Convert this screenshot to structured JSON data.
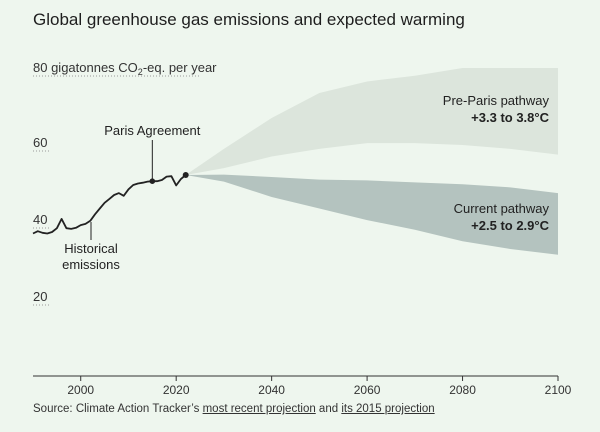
{
  "title": "Global greenhouse gas emissions and expected warming",
  "source": {
    "prefix": "Source: Climate Action Tracker’s ",
    "link1": "most recent projection",
    "middle": " and ",
    "link2": "its 2015 projection"
  },
  "colors": {
    "background": "#eef6ee",
    "pre_paris_band": "#dce5dc",
    "current_band": "#b4c3bf",
    "line": "#222222",
    "grid": "#9a9a9a"
  },
  "chart_data": {
    "type": "area",
    "title": "Global greenhouse gas emissions and expected warming",
    "ylabel": "80 gigatonnes CO2-eq. per year",
    "ylabel_parts": {
      "pre": "80 gigatonnes CO",
      "sub": "2",
      "post": "-eq. per year"
    },
    "xlim": [
      1990,
      2100
    ],
    "ylim": [
      0,
      80
    ],
    "x_ticks": [
      "2000",
      "2020",
      "2040",
      "2060",
      "2080",
      "2100"
    ],
    "y_ticks": [
      {
        "value": 60,
        "label": "60"
      },
      {
        "value": 40,
        "label": "40"
      },
      {
        "value": 20,
        "label": "20"
      }
    ],
    "series": [
      {
        "name": "Historical emissions",
        "type": "line",
        "x": [
          1990,
          1991,
          1992,
          1993,
          1994,
          1995,
          1996,
          1997,
          1998,
          1999,
          2000,
          2001,
          2002,
          2003,
          2004,
          2005,
          2006,
          2007,
          2008,
          2009,
          2010,
          2011,
          2012,
          2013,
          2014,
          2015,
          2016,
          2017,
          2018,
          2019,
          2020,
          2021,
          2022
        ],
        "y": [
          37.0,
          37.6,
          37.2,
          37.0,
          37.4,
          38.4,
          40.8,
          38.4,
          38.2,
          38.5,
          39.2,
          39.5,
          40.3,
          42.0,
          43.5,
          45.0,
          46.0,
          47.0,
          47.5,
          46.8,
          48.5,
          49.6,
          50.0,
          50.2,
          50.5,
          50.6,
          50.6,
          50.9,
          51.8,
          51.9,
          49.5,
          51.2,
          52.2
        ]
      },
      {
        "name": "Pre-Paris pathway",
        "type": "band",
        "x": [
          2022,
          2030,
          2040,
          2050,
          2060,
          2070,
          2080,
          2090,
          2100
        ],
        "low": [
          52.2,
          54,
          57,
          59,
          60.5,
          60.5,
          60,
          59,
          57.5
        ],
        "high": [
          52.2,
          59,
          67,
          73.5,
          76.5,
          78,
          80,
          80,
          80
        ]
      },
      {
        "name": "Current pathway",
        "type": "band",
        "x": [
          2022,
          2030,
          2040,
          2050,
          2060,
          2070,
          2080,
          2090,
          2100
        ],
        "low": [
          52.2,
          50.5,
          46.5,
          43.5,
          40.5,
          38.0,
          35.0,
          33.0,
          31.5
        ],
        "high": [
          52.2,
          52.3,
          51.7,
          51.0,
          50.8,
          50.3,
          49.8,
          49.0,
          47.5
        ]
      }
    ],
    "annotations": [
      {
        "name": "Paris Agreement",
        "lines": [
          "Paris Agreement"
        ],
        "x": 2015,
        "y": 50.6
      },
      {
        "name": "Historical emissions",
        "lines": [
          "Historical",
          "emissions"
        ]
      },
      {
        "name": "Pre-Paris pathway",
        "lines": [
          "Pre-Paris pathway",
          "+3.3 to 3.8°C"
        ]
      },
      {
        "name": "Current pathway",
        "lines": [
          "Current pathway",
          "+2.5 to 2.9°C"
        ]
      }
    ]
  }
}
